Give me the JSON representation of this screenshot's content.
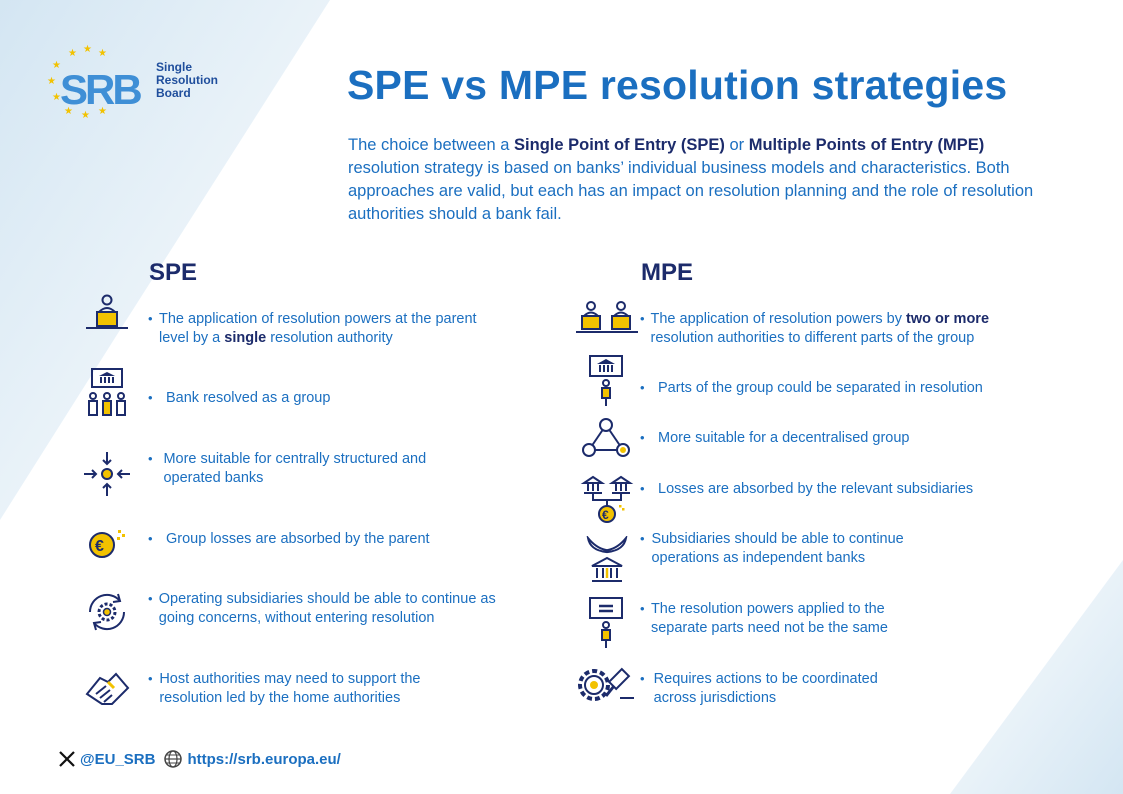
{
  "logo": {
    "mark": "SRB",
    "line1": "Single",
    "line2": "Resolution",
    "line3": "Board"
  },
  "title": "SPE vs MPE resolution strategies",
  "intro": {
    "p1": "The choice between a ",
    "b1": "Single Point of Entry (SPE)",
    "p2": " or ",
    "b2": "Multiple Points of Entry (MPE)",
    "p3": " resolution strategy is based on banks’ individual business models and characteristics. Both approaches are valid, but each has an impact on resolution planning and the role of resolution authorities should a bank fail."
  },
  "spe": {
    "heading": "SPE",
    "items": [
      {
        "icon": "person-at-desk-icon",
        "t1": "The application of resolution powers at the parent level by a ",
        "b": "single",
        "t2": " resolution authority"
      },
      {
        "icon": "bank-group-icon",
        "t1": "Bank resolved as a group",
        "b": "",
        "t2": ""
      },
      {
        "icon": "converging-arrows-icon",
        "t1": "More suitable for centrally structured and operated banks",
        "b": "",
        "t2": ""
      },
      {
        "icon": "euro-coin-icon",
        "t1": "Group losses are absorbed by the parent",
        "b": "",
        "t2": ""
      },
      {
        "icon": "gear-cycle-icon",
        "t1": "Operating subsidiaries should be able to continue as going concerns, without entering resolution",
        "b": "",
        "t2": ""
      },
      {
        "icon": "handshake-icon",
        "t1": "Host authorities may need to support the resolution led by the home authorities",
        "b": "",
        "t2": ""
      }
    ]
  },
  "mpe": {
    "heading": "MPE",
    "items": [
      {
        "icon": "two-persons-desks-icon",
        "t1": "The application of resolution powers by ",
        "b": "two or more",
        "t2": " resolution authorities to different parts of the group"
      },
      {
        "icon": "bank-sign-person-icon",
        "t1": "Parts of the group could be separated in resolution",
        "b": "",
        "t2": ""
      },
      {
        "icon": "network-triangle-icon",
        "t1": "More suitable for a decentralised group",
        "b": "",
        "t2": ""
      },
      {
        "icon": "banks-euro-icon",
        "t1": "Losses are absorbed by the relevant subsidiaries",
        "b": "",
        "t2": ""
      },
      {
        "icon": "winged-bank-icon",
        "t1": "Subsidiaries should be able to continue operations as independent banks",
        "b": "",
        "t2": ""
      },
      {
        "icon": "equals-sign-person-icon",
        "t1": "The resolution powers applied to the separate parts need not be the same",
        "b": "",
        "t2": ""
      },
      {
        "icon": "gear-gavel-icon",
        "t1": "Requires actions to be coordinated across jurisdictions",
        "b": "",
        "t2": ""
      }
    ]
  },
  "footer": {
    "handle": "@EU_SRB",
    "url": "https://srb.europa.eu/"
  },
  "colors": {
    "accent": "#1b6fc0",
    "dark": "#1c2b6b",
    "gold": "#f2c200"
  }
}
